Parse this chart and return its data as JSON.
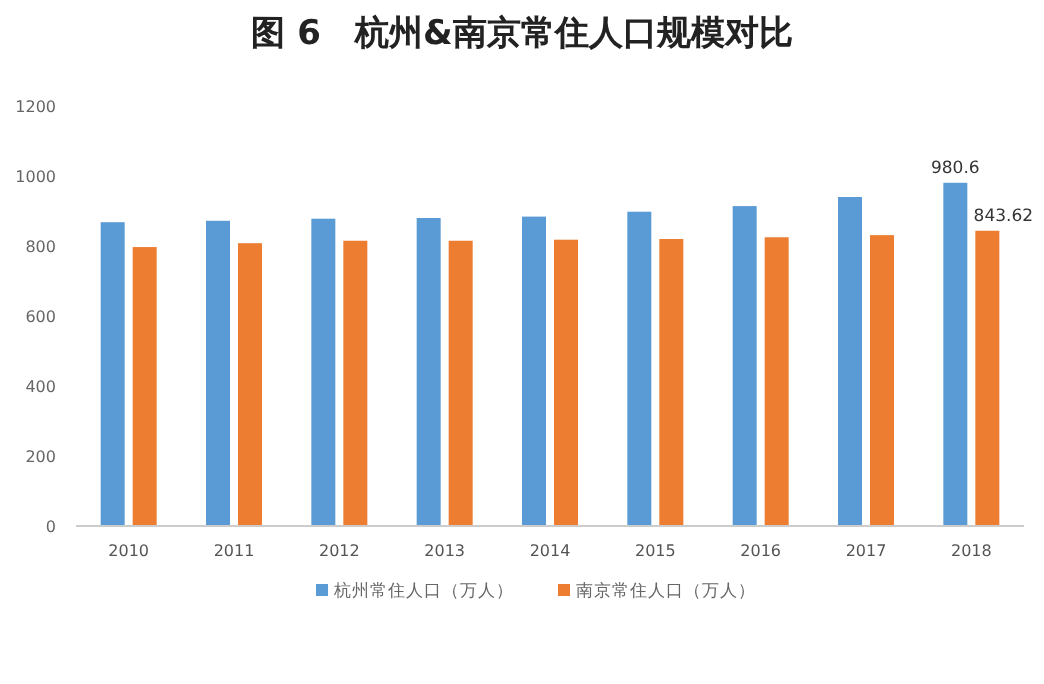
{
  "chart_data": {
    "type": "bar",
    "title": "图 6　杭州&南京常住人口规模对比",
    "categories": [
      "2010",
      "2011",
      "2012",
      "2013",
      "2014",
      "2015",
      "2016",
      "2017",
      "2018"
    ],
    "series": [
      {
        "name": "杭州常住人口（万人）",
        "color": "#5b9bd5",
        "values": [
          868,
          872,
          878,
          880,
          884,
          898,
          914,
          940,
          980.6
        ],
        "value_labels": [
          null,
          null,
          null,
          null,
          null,
          null,
          null,
          null,
          "980.6"
        ]
      },
      {
        "name": "南京常住人口（万人）",
        "color": "#ed7d31",
        "values": [
          797,
          808,
          815,
          815,
          818,
          820,
          825,
          831,
          843.62
        ],
        "value_labels": [
          null,
          null,
          null,
          null,
          null,
          null,
          null,
          null,
          "843.62"
        ]
      }
    ],
    "ylim": [
      0,
      1200
    ],
    "yticks": [
      0,
      200,
      400,
      600,
      800,
      1000,
      1200
    ],
    "legend": "bottom"
  }
}
